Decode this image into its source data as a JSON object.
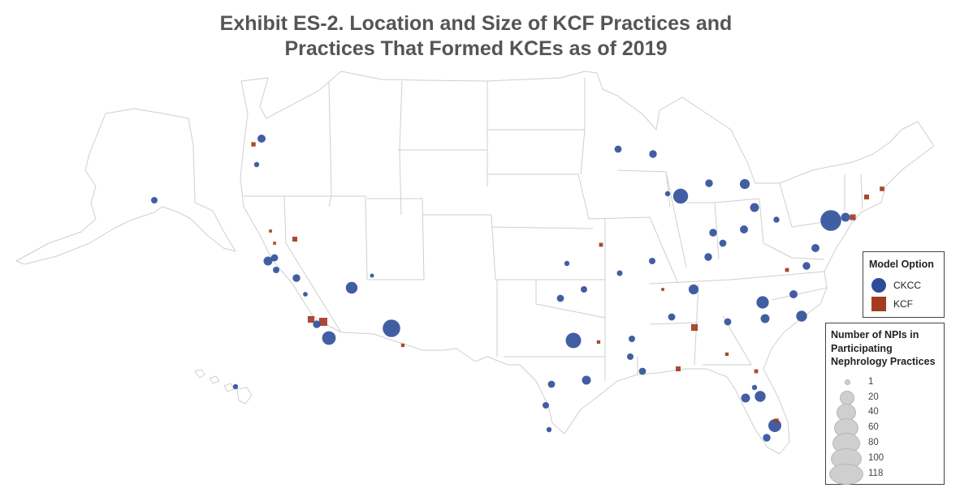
{
  "title": {
    "line1": "Exhibit ES-2. Location and Size of KCF Practices and",
    "line2": "Practices That Formed KCEs as of 2019"
  },
  "colors": {
    "ckcc": "#2e4d99",
    "kcf": "#a33b20",
    "state_border": "#cfcfcf",
    "size_legend_fill": "#cfcfcf"
  },
  "legend_model": {
    "title": "Model Option",
    "items": [
      {
        "label": "CKCC",
        "shape": "circle",
        "color": "#2e4d99"
      },
      {
        "label": "KCF",
        "shape": "square",
        "color": "#a33b20"
      }
    ]
  },
  "legend_size": {
    "title_lines": [
      "Number of NPIs in",
      "Participating",
      "Nephrology Practices"
    ],
    "items": [
      {
        "label": "1",
        "value": 1
      },
      {
        "label": "20",
        "value": 20
      },
      {
        "label": "40",
        "value": 40
      },
      {
        "label": "60",
        "value": 60
      },
      {
        "label": "80",
        "value": 80
      },
      {
        "label": "100",
        "value": 100
      },
      {
        "label": "118",
        "value": 118
      }
    ]
  },
  "map": {
    "region": "United States (incl. Alaska and Hawaii)",
    "markers": [
      {
        "model": "CKCC",
        "location": "Portland, OR",
        "size": 12
      },
      {
        "model": "KCF",
        "location": "Salem, OR",
        "size": 4
      },
      {
        "model": "CKCC",
        "location": "Eugene, OR",
        "size": 3
      },
      {
        "model": "CKCC",
        "location": "Anchorage, AK",
        "size": 6
      },
      {
        "model": "CKCC",
        "location": "Honolulu, HI",
        "size": 3
      },
      {
        "model": "KCF",
        "location": "Reno, NV",
        "size": 6
      },
      {
        "model": "KCF",
        "location": "Redding, CA",
        "size": 1
      },
      {
        "model": "KCF",
        "location": "Sacramento, CA",
        "size": 1
      },
      {
        "model": "CKCC",
        "location": "San Francisco Bay Area, CA",
        "size": 15
      },
      {
        "model": "CKCC",
        "location": "Oakland, CA",
        "size": 8
      },
      {
        "model": "CKCC",
        "location": "San Jose, CA",
        "size": 6
      },
      {
        "model": "CKCC",
        "location": "Fresno, CA",
        "size": 10
      },
      {
        "model": "CKCC",
        "location": "Las Vegas, NV",
        "size": 30
      },
      {
        "model": "CKCC",
        "location": "Bakersfield, CA",
        "size": 2
      },
      {
        "model": "KCF",
        "location": "Los Angeles, CA",
        "size": 15
      },
      {
        "model": "KCF",
        "location": "Riverside, CA",
        "size": 25
      },
      {
        "model": "CKCC",
        "location": "Los Angeles Area, CA",
        "size": 10
      },
      {
        "model": "CKCC",
        "location": "San Diego, CA",
        "size": 45
      },
      {
        "model": "CKCC",
        "location": "Phoenix, AZ",
        "size": 80
      },
      {
        "model": "KCF",
        "location": "Tucson, AZ",
        "size": 2
      },
      {
        "model": "CKCC",
        "location": "Flagstaff, AZ",
        "size": 1
      },
      {
        "model": "CKCC",
        "location": "Minneapolis, MN",
        "size": 8
      },
      {
        "model": "CKCC",
        "location": "Green Bay, WI",
        "size": 10
      },
      {
        "model": "CKCC",
        "location": "Chicago, IL",
        "size": 55
      },
      {
        "model": "CKCC",
        "location": "Milwaukee, WI",
        "size": 3
      },
      {
        "model": "CKCC",
        "location": "Detroit, MI",
        "size": 20
      },
      {
        "model": "CKCC",
        "location": "Grand Rapids, MI",
        "size": 10
      },
      {
        "model": "CKCC",
        "location": "Indianapolis, IN",
        "size": 10
      },
      {
        "model": "CKCC",
        "location": "Columbus, OH",
        "size": 12
      },
      {
        "model": "CKCC",
        "location": "Cleveland, OH",
        "size": 15
      },
      {
        "model": "CKCC",
        "location": "Pittsburgh, PA",
        "size": 5
      },
      {
        "model": "CKCC",
        "location": "Philadelphia, PA",
        "size": 118
      },
      {
        "model": "CKCC",
        "location": "New York, NY",
        "size": 15
      },
      {
        "model": "KCF",
        "location": "New York City, NY",
        "size": 10
      },
      {
        "model": "KCF",
        "location": "Boston, MA",
        "size": 6
      },
      {
        "model": "KCF",
        "location": "Providence, RI",
        "size": 5
      },
      {
        "model": "CKCC",
        "location": "Baltimore, MD",
        "size": 12
      },
      {
        "model": "CKCC",
        "location": "Washington, DC",
        "size": 10
      },
      {
        "model": "KCF",
        "location": "Charlottesville, VA",
        "size": 3
      },
      {
        "model": "CKCC",
        "location": "Raleigh, NC",
        "size": 12
      },
      {
        "model": "CKCC",
        "location": "Charlotte, NC",
        "size": 35
      },
      {
        "model": "CKCC",
        "location": "Greenville, NC",
        "size": 25
      },
      {
        "model": "CKCC",
        "location": "Columbia, SC",
        "size": 15
      },
      {
        "model": "CKCC",
        "location": "Atlanta, GA",
        "size": 8
      },
      {
        "model": "KCF",
        "location": "Macon, GA",
        "size": 2
      },
      {
        "model": "CKCC",
        "location": "Jacksonville, FL",
        "size": 3
      },
      {
        "model": "CKCC",
        "location": "Orlando, FL",
        "size": 25
      },
      {
        "model": "KCF",
        "location": "Tallahassee, FL",
        "size": 3
      },
      {
        "model": "CKCC",
        "location": "Tampa, FL",
        "size": 15
      },
      {
        "model": "CKCC",
        "location": "West Palm Beach, FL",
        "size": 40
      },
      {
        "model": "KCF",
        "location": "Fort Lauderdale, FL",
        "size": 4
      },
      {
        "model": "CKCC",
        "location": "Miami, FL",
        "size": 10
      },
      {
        "model": "CKCC",
        "location": "Nashville, TN",
        "size": 20
      },
      {
        "model": "KCF",
        "location": "Huntsville, AL",
        "size": 1
      },
      {
        "model": "CKCC",
        "location": "Birmingham, AL",
        "size": 8
      },
      {
        "model": "KCF",
        "location": "Montgomery, AL",
        "size": 15
      },
      {
        "model": "KCF",
        "location": "Mobile, AL",
        "size": 6
      },
      {
        "model": "CKCC",
        "location": "Jackson, MS",
        "size": 6
      },
      {
        "model": "CKCC",
        "location": "New Orleans, LA",
        "size": 8
      },
      {
        "model": "CKCC",
        "location": "Dallas, TX",
        "size": 60
      },
      {
        "model": "KCF",
        "location": "Tyler, TX",
        "size": 2
      },
      {
        "model": "CKCC",
        "location": "Houston, TX",
        "size": 15
      },
      {
        "model": "CKCC",
        "location": "Austin, TX",
        "size": 8
      },
      {
        "model": "CKCC",
        "location": "San Antonio, TX",
        "size": 6
      },
      {
        "model": "CKCC",
        "location": "Corpus Christi, TX",
        "size": 3
      },
      {
        "model": "CKCC",
        "location": "Oklahoma City, OK",
        "size": 8
      },
      {
        "model": "CKCC",
        "location": "Tulsa, OK",
        "size": 6
      },
      {
        "model": "CKCC",
        "location": "Kansas City, MO",
        "size": 3
      },
      {
        "model": "KCF",
        "location": "Columbia, MO",
        "size": 3
      },
      {
        "model": "CKCC",
        "location": "St. Louis, MO",
        "size": 6
      },
      {
        "model": "CKCC",
        "location": "Memphis, TN",
        "size": 6
      },
      {
        "model": "CKCC",
        "location": "Little Rock, AR",
        "size": 4
      },
      {
        "model": "CKCC",
        "location": "Lexington, KY",
        "size": 10
      },
      {
        "model": "CKCC",
        "location": "Louisville, KY",
        "size": 8
      }
    ]
  }
}
